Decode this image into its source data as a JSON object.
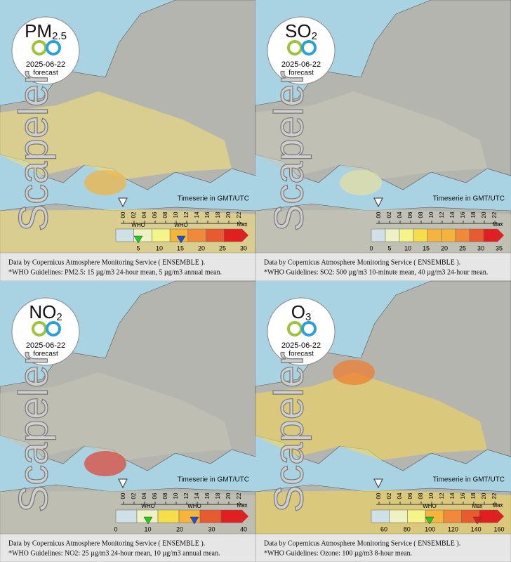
{
  "common": {
    "date": "2025-06-22",
    "forecast": "forecast",
    "brand": "Scapeler",
    "timeserie": "Timeserie in GMT/UTC",
    "max": "Max",
    "source": "Data by Copernicus Atmosphere Monitoring Service ( ENSEMBLE ).",
    "hours": [
      "00",
      "02",
      "04",
      "06",
      "08",
      "10",
      "12",
      "14",
      "16",
      "18",
      "20",
      "22"
    ]
  },
  "panels": [
    {
      "pollutant": "PM",
      "subscript": "2.5",
      "scale": [
        "5",
        "10",
        "15",
        "20",
        "25",
        "30"
      ],
      "markers": [
        {
          "label": "WHO",
          "color": "#22cc22"
        },
        {
          "label": "WHO",
          "color": "#1f4fd8"
        }
      ],
      "guideline": "*WHO Guidelines: PM2.5: 15 µg/m3 24-hour mean, 5 µg/m3 annual mean."
    },
    {
      "pollutant": "SO",
      "subscript": "2",
      "scale": [
        "0",
        "5",
        "10",
        "15",
        "20",
        "25",
        "30",
        "35"
      ],
      "markers": [],
      "guideline": "*WHO Guidelines: SO2: 500 µg/m3 10-minute mean, 40 µg/m3 24-hour mean."
    },
    {
      "pollutant": "NO",
      "subscript": "2",
      "scale": [
        "0",
        "10",
        "20",
        "30",
        "40"
      ],
      "markers": [
        {
          "label": "WHO",
          "color": "#22cc22"
        },
        {
          "label": "WHO",
          "color": "#1f4fd8"
        }
      ],
      "guideline": "*WHO Guidelines: NO2: 25 µg/m3 24-hour mean, 10 µg/m3 annual mean."
    },
    {
      "pollutant": "O",
      "subscript": "3",
      "scale": [
        "60",
        "80",
        "100",
        "120",
        "140",
        "160"
      ],
      "markers": [
        {
          "label": "WHO",
          "color": "#22cc22"
        },
        {
          "label": "Max",
          "color": "#e02020"
        }
      ],
      "guideline": "*WHO Guidelines: Ozone: 100 µg/m3 8-hour mean."
    }
  ]
}
